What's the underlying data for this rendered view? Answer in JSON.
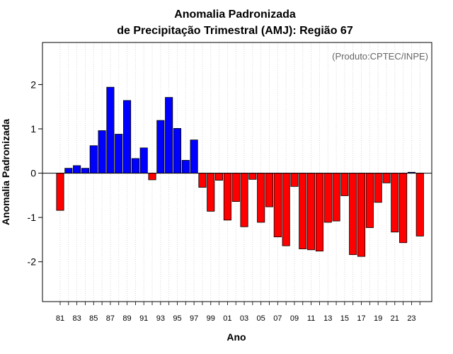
{
  "chart_data": {
    "type": "bar",
    "title": "Anomalia Padronizada",
    "subtitle": "de Precipitação Trimestral (AMJ): Região 67",
    "xlabel": "Ano",
    "ylabel": "Anomalia Padronizada",
    "credit": "(Produto:CPTEC/INPE)",
    "ylim": [
      -2.9,
      2.95
    ],
    "yticks": [
      {
        "value": -2,
        "label": "-2"
      },
      {
        "value": -1,
        "label": "-1"
      },
      {
        "value": 0,
        "label": "0"
      },
      {
        "value": 1,
        "label": "1"
      },
      {
        "value": 2,
        "label": "2"
      }
    ],
    "x_tick_labels": [
      "81",
      "83",
      "85",
      "87",
      "89",
      "91",
      "93",
      "95",
      "97",
      "99",
      "01",
      "03",
      "05",
      "07",
      "09",
      "11",
      "13",
      "15",
      "17",
      "19",
      "21",
      "23"
    ],
    "grid": "vertical dotted",
    "categories": [
      "1981",
      "1982",
      "1983",
      "1984",
      "1985",
      "1986",
      "1987",
      "1988",
      "1989",
      "1990",
      "1991",
      "1992",
      "1993",
      "1994",
      "1995",
      "1996",
      "1997",
      "1998",
      "1999",
      "2000",
      "2001",
      "2002",
      "2003",
      "2004",
      "2005",
      "2006",
      "2007",
      "2008",
      "2009",
      "2010",
      "2011",
      "2012",
      "2013",
      "2014",
      "2015",
      "2016",
      "2017",
      "2018",
      "2019",
      "2020",
      "2021",
      "2022",
      "2023",
      "2024"
    ],
    "values": [
      -0.84,
      0.11,
      0.17,
      0.11,
      0.62,
      0.96,
      1.94,
      0.88,
      1.64,
      0.33,
      0.57,
      -0.15,
      1.19,
      1.71,
      1.01,
      0.29,
      0.75,
      -0.32,
      -0.86,
      -0.16,
      -1.06,
      -0.64,
      -1.21,
      -0.14,
      -1.11,
      -0.76,
      -1.44,
      -1.64,
      -0.3,
      -1.71,
      -1.73,
      -1.76,
      -1.11,
      -1.08,
      -0.51,
      -1.84,
      -1.88,
      -1.23,
      -0.66,
      -0.22,
      -1.33,
      -1.57,
      0.02,
      -1.42
    ],
    "colors": {
      "positive": "#0000ff",
      "negative": "#ff0000",
      "outline": "#000000",
      "grid": "#cccccc"
    }
  }
}
